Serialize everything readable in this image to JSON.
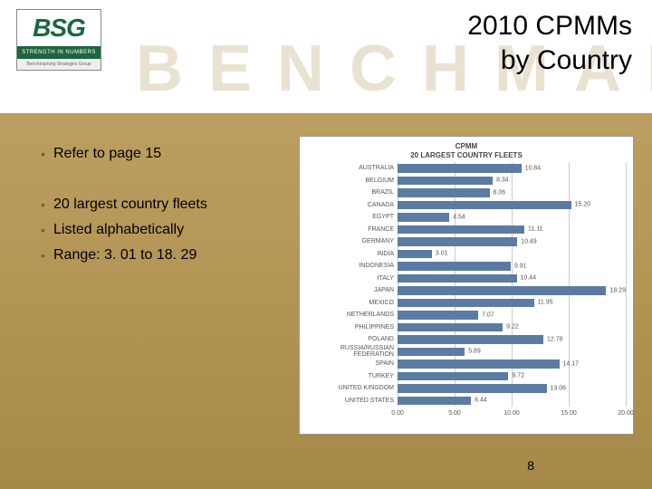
{
  "logo": {
    "text": "BSG",
    "tagline": "STRENGTH IN NUMBERS",
    "subtag": "Benchmarking Strategies Group"
  },
  "watermark": "BENCHMARK",
  "title": {
    "line1": "2010 CPMMs",
    "line2": "by Country"
  },
  "bullets": [
    "Refer to page 15",
    "",
    "20 largest country fleets",
    "Listed alphabetically",
    "Range: 3. 01 to 18. 29"
  ],
  "chart": {
    "title_line1": "CPMM",
    "title_line2": "20 LARGEST COUNTRY FLEETS",
    "xmax": 20.0,
    "xtick_step": 5.0,
    "xtick_labels": [
      "0.00",
      "5.00",
      "10.00",
      "15.00",
      "20.00"
    ],
    "bar_color": "#5b7ba3",
    "grid_color": "#cccccc",
    "background_color": "#ffffff",
    "label_fontsize": 7,
    "rows": [
      {
        "country": "AUSTRALIA",
        "value": 10.84
      },
      {
        "country": "BELGIUM",
        "value": 8.34
      },
      {
        "country": "BRAZIL",
        "value": 8.06
      },
      {
        "country": "CANADA",
        "value": 15.2
      },
      {
        "country": "EGYPT",
        "value": 4.54
      },
      {
        "country": "FRANCE",
        "value": 11.11
      },
      {
        "country": "GERMANY",
        "value": 10.49
      },
      {
        "country": "INDIA",
        "value": 3.01
      },
      {
        "country": "INDONESIA",
        "value": 9.91
      },
      {
        "country": "ITALY",
        "value": 10.44
      },
      {
        "country": "JAPAN",
        "value": 18.29
      },
      {
        "country": "MEXICO",
        "value": 11.95
      },
      {
        "country": "NETHERLANDS",
        "value": 7.07
      },
      {
        "country": "PHILIPPINES",
        "value": 9.22
      },
      {
        "country": "POLAND",
        "value": 12.78
      },
      {
        "country": "RUSSIA/RUSSIAN FEDERATION",
        "value": 5.89
      },
      {
        "country": "SPAIN",
        "value": 14.17
      },
      {
        "country": "TURKEY",
        "value": 9.72
      },
      {
        "country": "UNITED KINGDOM",
        "value": 13.06
      },
      {
        "country": "UNITED STATES",
        "value": 6.44
      }
    ]
  },
  "page_number": "8"
}
